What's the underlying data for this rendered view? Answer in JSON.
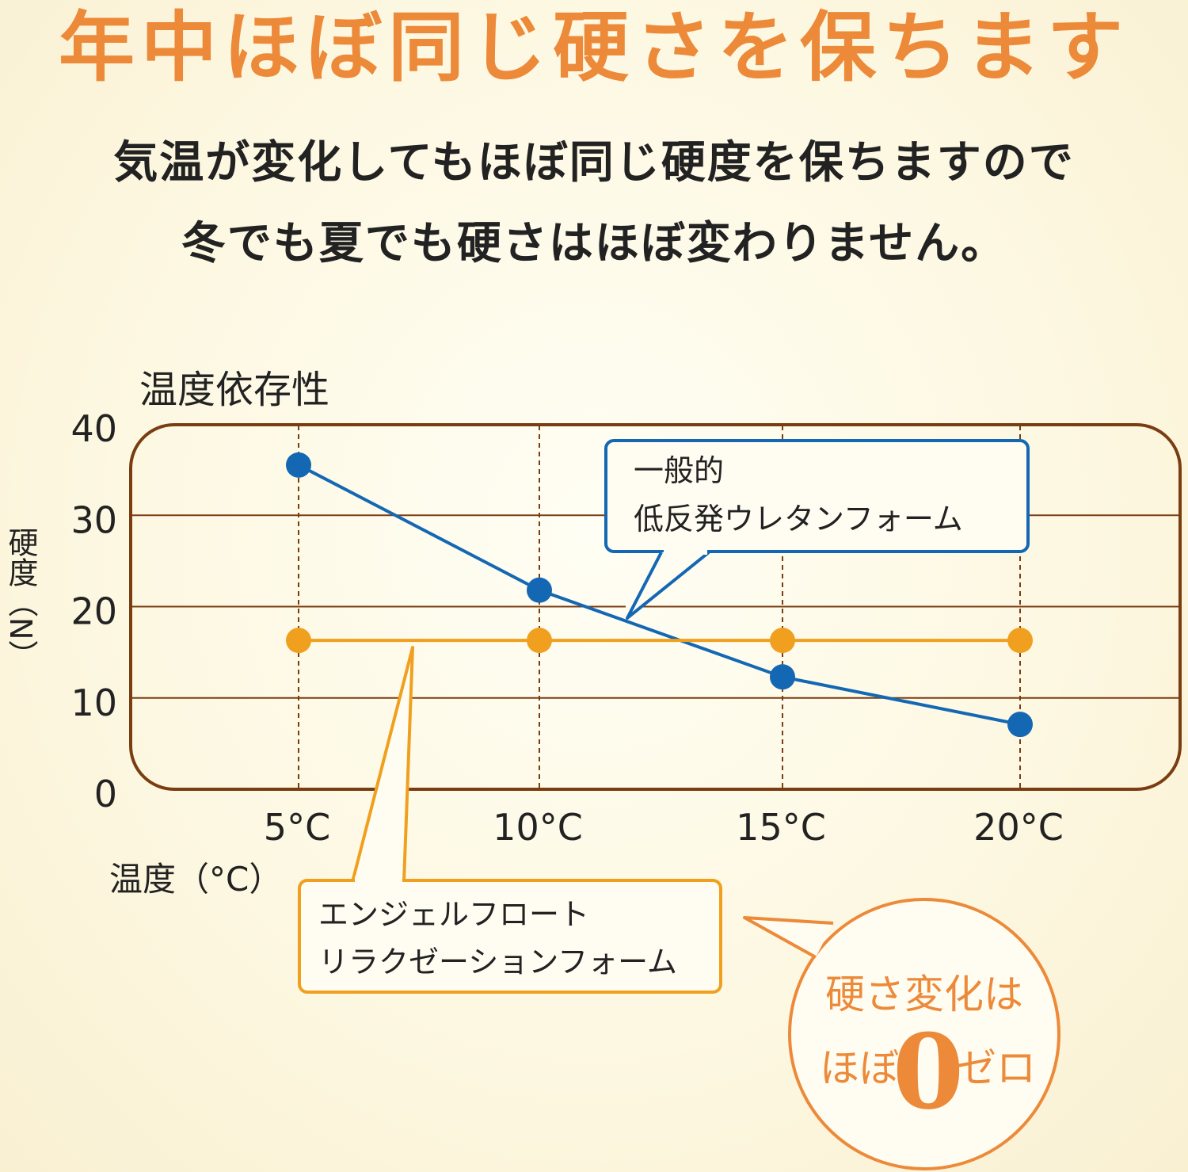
{
  "header": {
    "headline": "年中ほぼ同じ硬さを保ちます",
    "lead_line1": "気温が変化してもほぼ同じ硬度を保ちますので",
    "lead_line2": "冬でも夏でも硬さはほぼ変わりません。"
  },
  "colors": {
    "accent": "#ec8a3a",
    "frame": "#7a3d12",
    "general_series": "#1468b3",
    "angel_series": "#f0a01e"
  },
  "chart_data": {
    "type": "line",
    "title": "温度依存性",
    "xlabel": "温度（°C）",
    "ylabel": "硬度（N）",
    "categories": [
      "5°C",
      "10°C",
      "15°C",
      "20°C"
    ],
    "ylim": [
      0,
      40
    ],
    "yticks": [
      "0",
      "10",
      "20",
      "30",
      "40"
    ],
    "grid": true,
    "series": [
      {
        "key": "general",
        "label_line1": "一般的",
        "label_line2": "低反発ウレタンフォーム",
        "values": [
          35.5,
          21.8,
          12.3,
          7.1
        ]
      },
      {
        "key": "angel",
        "label_line1": "エンジェルフロート",
        "label_line2": "リラクゼーションフォーム",
        "values": [
          16.3,
          16.3,
          16.3,
          16.3
        ]
      }
    ],
    "badge": {
      "line1": "硬さ変化は",
      "line2_prefix": "ほぼ",
      "line2_number": "0",
      "line2_suffix": "ゼロ"
    }
  }
}
